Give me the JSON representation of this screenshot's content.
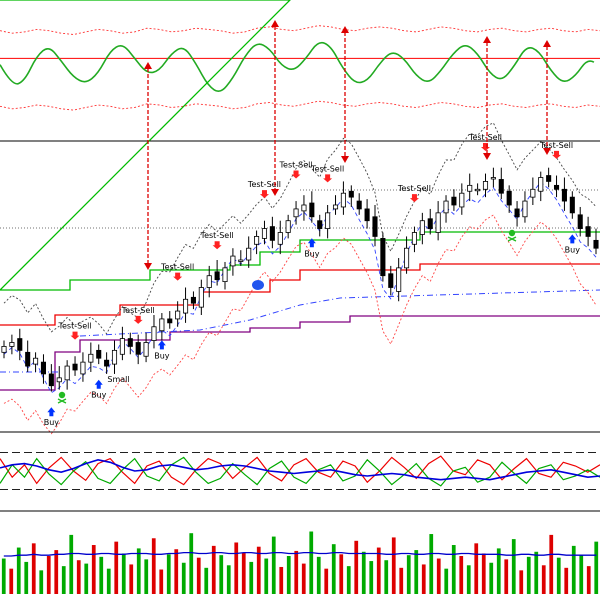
{
  "colors": {
    "background": "#ffffff",
    "panel_border": "#000000",
    "oscillator_line": "#22aa22",
    "oscillator_band": "#ff3333",
    "reference_line": "#ff0000",
    "arrow": "#dd0000",
    "candle_up": "#ffffff",
    "candle_down": "#000000",
    "envelope_green": "#00bb00",
    "envelope_red": "#ee0000",
    "envelope_purple": "#800080",
    "dash_blue": "#3344ff",
    "dotted_black": "#444444",
    "dotted_red": "#ff4444",
    "buy_arrow": "#0033ff",
    "sell_arrow": "#ff2222",
    "stoch_red": "#ee0000",
    "stoch_green": "#00aa00",
    "stoch_blue": "#0000dd",
    "volume_up": "#00aa00",
    "volume_down": "#dd0000",
    "volume_avg": "#0000cc"
  },
  "icons": {
    "buy_marker": "up-arrow-icon",
    "sell_marker": "down-arrow-icon",
    "skull_marker": "skull-crossbones-icon",
    "divergence_arrow": "double-headed-arrow-icon"
  },
  "chart_data": [
    {
      "panel": "oscillator",
      "type": "line",
      "series": [
        {
          "values": [
            55,
            38,
            42,
            62,
            70,
            58,
            45,
            40,
            48,
            66,
            72,
            60,
            48,
            50,
            64,
            70,
            56,
            38,
            32,
            44,
            62,
            73,
            68,
            54,
            50,
            60,
            74,
            70,
            52,
            40,
            42,
            56,
            66,
            60,
            46,
            40,
            50,
            64,
            72,
            64,
            48,
            42,
            54,
            70,
            66,
            50,
            40,
            46,
            60,
            54
          ]
        }
      ],
      "upper_band": [
        82,
        80,
        81,
        83,
        82,
        80,
        79,
        81,
        83,
        82,
        80,
        81,
        84,
        83,
        81,
        82,
        84,
        83,
        82,
        80,
        81,
        84,
        85,
        83,
        82,
        84,
        86,
        85,
        83,
        82,
        84,
        85,
        84,
        82,
        81,
        83,
        85,
        84,
        82,
        81,
        83,
        84,
        82,
        81,
        83,
        84,
        82,
        81,
        83,
        82
      ],
      "lower_band": [
        22,
        20,
        21,
        23,
        22,
        20,
        19,
        21,
        23,
        22,
        20,
        21,
        24,
        23,
        21,
        22,
        24,
        23,
        22,
        20,
        21,
        24,
        25,
        23,
        22,
        24,
        26,
        25,
        23,
        22,
        24,
        25,
        24,
        22,
        21,
        23,
        25,
        24,
        22,
        21,
        23,
        24,
        22,
        21,
        23,
        24,
        22,
        21,
        23,
        22
      ],
      "reference_level": 60
    },
    {
      "panel": "price",
      "type": "candlestick",
      "closes": [
        40,
        42,
        38,
        30,
        34,
        26,
        20,
        24,
        30,
        28,
        32,
        36,
        34,
        30,
        38,
        44,
        40,
        36,
        42,
        50,
        54,
        52,
        58,
        64,
        62,
        70,
        76,
        74,
        80,
        86,
        84,
        90,
        96,
        100,
        94,
        98,
        104,
        110,
        112,
        106,
        100,
        108,
        112,
        118,
        116,
        110,
        104,
        96,
        76,
        70,
        80,
        90,
        98,
        104,
        100,
        108,
        114,
        112,
        118,
        122,
        120,
        124,
        126,
        118,
        112,
        106,
        114,
        120,
        126,
        124,
        120,
        114,
        108,
        100,
        96,
        90
      ],
      "annotations": [
        {
          "text": "Test-Sell"
        },
        {
          "text": "Test-Sell"
        },
        {
          "text": "Test-Sell"
        },
        {
          "text": "Test-Sell"
        },
        {
          "text": "Test-Sell"
        },
        {
          "text": "Test-Sell"
        },
        {
          "text": "Test-Sell"
        },
        {
          "text": "Test-Sell"
        },
        {
          "text": "Test-Sell"
        },
        {
          "text": "Test-Sell"
        },
        {
          "text": "Buy"
        },
        {
          "text": "Buy"
        },
        {
          "text": "Buy"
        },
        {
          "text": "Buy"
        },
        {
          "text": "Buy"
        },
        {
          "text": "Small"
        }
      ]
    },
    {
      "panel": "stochastic",
      "type": "line",
      "series": [
        {
          "values": [
            70,
            40,
            60,
            30,
            55,
            72,
            50,
            35,
            62,
            70,
            48,
            30,
            58,
            66,
            40,
            28,
            52,
            70,
            62,
            38,
            56,
            72,
            46,
            34,
            60,
            70,
            48,
            40,
            66,
            58,
            32,
            50,
            72,
            56,
            38,
            62,
            74,
            50,
            44,
            68,
            60,
            36,
            54,
            70,
            46,
            40,
            64,
            58,
            48,
            60
          ]
        },
        {
          "values": [
            30,
            60,
            40,
            70,
            45,
            28,
            50,
            65,
            38,
            30,
            52,
            70,
            42,
            34,
            60,
            72,
            48,
            30,
            38,
            62,
            44,
            28,
            54,
            66,
            40,
            30,
            52,
            60,
            34,
            42,
            68,
            50,
            28,
            44,
            62,
            38,
            26,
            50,
            56,
            32,
            40,
            64,
            46,
            30,
            54,
            60,
            36,
            42,
            52,
            40
          ]
        },
        {
          "values": [
            55,
            60,
            62,
            58,
            52,
            48,
            54,
            62,
            68,
            64,
            56,
            50,
            52,
            58,
            60,
            56,
            52,
            54,
            58,
            60,
            58,
            54,
            50,
            48,
            46,
            48,
            50,
            52,
            48,
            44,
            42,
            44,
            46,
            44,
            40,
            38,
            36,
            38,
            40,
            38,
            36,
            40,
            44,
            48,
            50,
            52,
            48,
            44,
            40,
            42
          ]
        }
      ],
      "levels": [
        80,
        20
      ]
    },
    {
      "panel": "volume",
      "type": "bar",
      "values": [
        42,
        30,
        55,
        38,
        60,
        28,
        45,
        52,
        33,
        70,
        40,
        36,
        58,
        44,
        30,
        62,
        48,
        35,
        54,
        41,
        66,
        29,
        47,
        53,
        37,
        72,
        43,
        31,
        57,
        46,
        34,
        61,
        49,
        38,
        56,
        42,
        68,
        32,
        45,
        51,
        36,
        74,
        44,
        30,
        59,
        47,
        33,
        63,
        50,
        39,
        55,
        40,
        67,
        31,
        46,
        52,
        35,
        71,
        42,
        30,
        58,
        45,
        34,
        60,
        48,
        37,
        54,
        41,
        65,
        28,
        44,
        50,
        34,
        70,
        43,
        31,
        57,
        46,
        33,
        62
      ],
      "directions": [
        1,
        0,
        1,
        1,
        0,
        1,
        0,
        0,
        1,
        1,
        0,
        1,
        0,
        1,
        1,
        0,
        1,
        0,
        1,
        1,
        0,
        0,
        1,
        0,
        1,
        1,
        0,
        1,
        0,
        1,
        1,
        0,
        0,
        1,
        0,
        1,
        1,
        0,
        1,
        0,
        0,
        1,
        1,
        0,
        1,
        0,
        1,
        0,
        1,
        1,
        0,
        1,
        0,
        0,
        1,
        1,
        0,
        1,
        0,
        1,
        1,
        0,
        1,
        0,
        0,
        1,
        1,
        0,
        1,
        0,
        1,
        1,
        0,
        0,
        1,
        0,
        1,
        1,
        0,
        1
      ],
      "average": [
        45,
        45,
        46,
        46,
        47,
        46,
        46,
        47,
        47,
        48,
        48,
        47,
        47,
        48,
        48,
        47,
        47,
        48,
        48,
        48,
        47,
        47,
        48,
        48,
        49,
        49,
        48,
        48,
        49,
        49,
        48,
        48,
        49,
        49,
        48,
        48,
        49,
        49,
        48,
        48,
        49,
        49,
        48,
        48,
        49,
        49,
        48,
        48,
        48,
        48,
        48,
        47,
        47,
        48,
        48,
        47,
        47,
        48,
        48,
        47,
        47,
        48,
        48,
        47,
        47,
        47,
        47,
        46,
        46,
        47,
        47,
        46,
        46,
        47,
        47,
        46,
        46,
        46,
        46,
        46
      ]
    }
  ]
}
